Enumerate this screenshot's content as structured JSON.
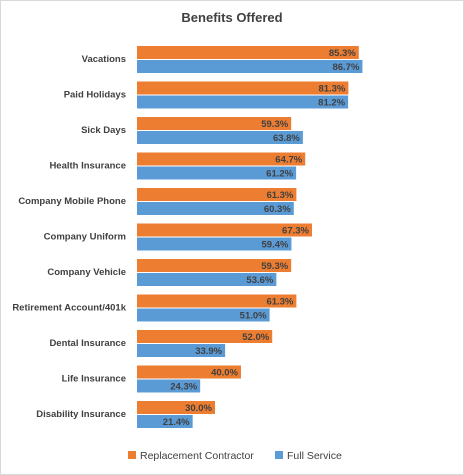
{
  "chart_data": {
    "type": "bar",
    "orientation": "horizontal",
    "title": "Benefits Offered",
    "categories": [
      "Vacations",
      "Paid Holidays",
      "Sick Days",
      "Health Insurance",
      "Company Mobile Phone",
      "Company Uniform",
      "Company Vehicle",
      "Retirement Account/401k",
      "Dental Insurance",
      "Life Insurance",
      "Disability Insurance"
    ],
    "series": [
      {
        "name": "Replacement Contractor",
        "color": "#ed7d31",
        "values": [
          85.3,
          81.3,
          59.3,
          64.7,
          61.3,
          67.3,
          59.3,
          61.3,
          52.0,
          40.0,
          30.0
        ],
        "labels": [
          "85.3%",
          "81.3%",
          "59.3%",
          "64.7%",
          "61.3%",
          "67.3%",
          "59.3%",
          "61.3%",
          "52.0%",
          "40.0%",
          "30.0%"
        ]
      },
      {
        "name": "Full Service",
        "color": "#5b9bd5",
        "values": [
          86.7,
          81.2,
          63.8,
          61.2,
          60.3,
          59.4,
          53.6,
          51.0,
          33.9,
          24.3,
          21.4
        ],
        "labels": [
          "86.7%",
          "81.2%",
          "63.8%",
          "61.2%",
          "60.3%",
          "59.4%",
          "53.6%",
          "51.0%",
          "33.9%",
          "24.3%",
          "21.4%"
        ]
      }
    ],
    "xlim": [
      0,
      100
    ],
    "grid": false,
    "legend_position": "bottom"
  }
}
